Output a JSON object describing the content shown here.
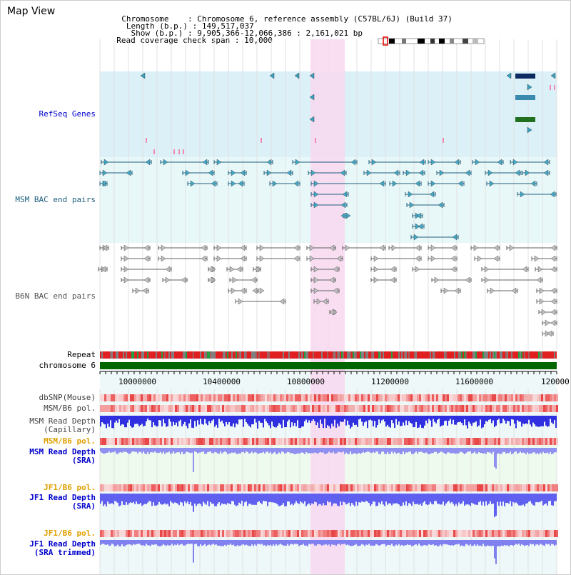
{
  "app_title": "Map View",
  "info": {
    "chromosome_label": "Chromosome",
    "chromosome_value": "Chromosome 6, reference assembly (C57BL/6J) (Build 37)",
    "length_label": "Length (b.p.)",
    "length_value": "149,517,037",
    "show_label": "Show (b.p.)",
    "show_value": "9,905,366-12,066,386 : 2,161,021 bp",
    "coverage_label": "Read coverage check span",
    "coverage_value": "10,000"
  },
  "tracks": {
    "refseq": "RefSeq Genes",
    "msm_bac": "MSM BAC end pairs",
    "b6n_bac": "B6N BAC end pairs",
    "repeat": "Repeat",
    "chromosome": "chromosome 6",
    "dbsnp": "dbSNP(Mouse)",
    "msm_b6_pol_1": "MSM/B6 pol.",
    "msm_read_depth_cap": "MSM Read Depth\n(Capillary)",
    "msm_b6_pol_2": "MSM/B6 pol.",
    "msm_read_depth_sra": "MSM Read Depth\n(SRA)",
    "jf1_b6_pol_1": "JF1/B6 pol.",
    "jf1_read_depth_sra": "JF1 Read Depth\n(SRA)",
    "jf1_b6_pol_2": "JF1/B6 pol.",
    "jf1_read_depth_trim": "JF1 Read Depth\n(SRA trimmed)"
  },
  "axis": {
    "ticks": [
      "10000000",
      "10400000",
      "10800000",
      "11200000",
      "11600000",
      "120000"
    ]
  },
  "colors": {
    "refseq_bg": "#dcf0f8",
    "msm_bac_bg": "#e8f8f8",
    "highlight": "#f8d8f0",
    "label_blue": "#0000cc",
    "label_teal": "#206080",
    "label_orange": "#e0a000",
    "chromosome_green": "#006600"
  }
}
